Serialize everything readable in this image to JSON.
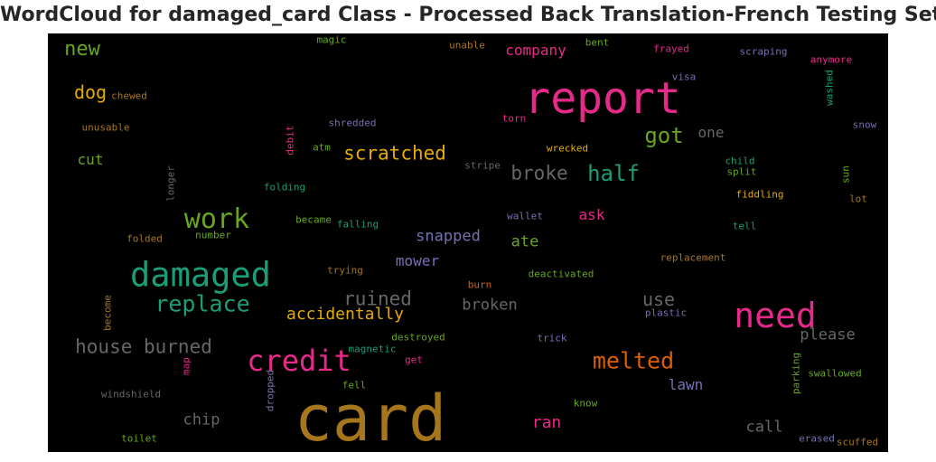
{
  "title": "WordCloud for damaged_card Class - Processed Back Translation-French Testing Set",
  "colors": {
    "background": "#000000",
    "palette": [
      "#b07a1f",
      "#e7298a",
      "#1b9e77",
      "#66a61e",
      "#e6ab02",
      "#d95f02",
      "#7570b3",
      "#666666",
      "#a6761d"
    ]
  },
  "chart_data": {
    "type": "wordcloud",
    "title": "WordCloud for damaged_card Class - Processed Back Translation-French Testing Set",
    "words": [
      {
        "text": "card",
        "weight": 100,
        "color": "#a6761d",
        "vertical": false
      },
      {
        "text": "report",
        "weight": 73,
        "color": "#e7298a",
        "vertical": false
      },
      {
        "text": "need",
        "weight": 57,
        "color": "#e7298a",
        "vertical": false
      },
      {
        "text": "damaged",
        "weight": 55,
        "color": "#1b9e77",
        "vertical": false
      },
      {
        "text": "credit",
        "weight": 48,
        "color": "#e7298a",
        "vertical": false
      },
      {
        "text": "work",
        "weight": 44,
        "color": "#66a61e",
        "vertical": false
      },
      {
        "text": "replace",
        "weight": 36,
        "color": "#1b9e77",
        "vertical": false
      },
      {
        "text": "melted",
        "weight": 36,
        "color": "#d95f02",
        "vertical": false
      },
      {
        "text": "half",
        "weight": 34,
        "color": "#1b9e77",
        "vertical": false
      },
      {
        "text": "got",
        "weight": 34,
        "color": "#66a61e",
        "vertical": false
      },
      {
        "text": "new",
        "weight": 32,
        "color": "#66a61e",
        "vertical": false
      },
      {
        "text": "house burned",
        "weight": 30,
        "color": "#666666",
        "vertical": false
      },
      {
        "text": "scratched",
        "weight": 30,
        "color": "#e6ab02",
        "vertical": false
      },
      {
        "text": "broke",
        "weight": 30,
        "color": "#666666",
        "vertical": false
      },
      {
        "text": "ruined",
        "weight": 30,
        "color": "#666666",
        "vertical": false
      },
      {
        "text": "dog",
        "weight": 29,
        "color": "#e6ab02",
        "vertical": false
      },
      {
        "text": "use",
        "weight": 28,
        "color": "#666666",
        "vertical": false
      },
      {
        "text": "accidentally",
        "weight": 25,
        "color": "#e6ab02",
        "vertical": false
      },
      {
        "text": "ran",
        "weight": 25,
        "color": "#e7298a",
        "vertical": false
      },
      {
        "text": "broken",
        "weight": 24,
        "color": "#666666",
        "vertical": false
      },
      {
        "text": "please",
        "weight": 24,
        "color": "#666666",
        "vertical": false
      },
      {
        "text": "call",
        "weight": 24,
        "color": "#666666",
        "vertical": false
      },
      {
        "text": "chip",
        "weight": 24,
        "color": "#666666",
        "vertical": false
      },
      {
        "text": "snapped",
        "weight": 23,
        "color": "#7570b3",
        "vertical": false
      },
      {
        "text": "ate",
        "weight": 23,
        "color": "#66a61e",
        "vertical": false
      },
      {
        "text": "ask",
        "weight": 22,
        "color": "#e7298a",
        "vertical": false
      },
      {
        "text": "company",
        "weight": 22,
        "color": "#e7298a",
        "vertical": false
      },
      {
        "text": "lawn",
        "weight": 22,
        "color": "#7570b3",
        "vertical": false
      },
      {
        "text": "mower",
        "weight": 22,
        "color": "#7570b3",
        "vertical": false
      },
      {
        "text": "cut",
        "weight": 22,
        "color": "#66a61e",
        "vertical": false
      },
      {
        "text": "one",
        "weight": 22,
        "color": "#666666",
        "vertical": false
      },
      {
        "text": "magic",
        "weight": 14,
        "color": "#66a61e",
        "vertical": false
      },
      {
        "text": "unable",
        "weight": 14,
        "color": "#a6761d",
        "vertical": false
      },
      {
        "text": "bent",
        "weight": 14,
        "color": "#66a61e",
        "vertical": false
      },
      {
        "text": "frayed",
        "weight": 14,
        "color": "#e7298a",
        "vertical": false
      },
      {
        "text": "scraping",
        "weight": 14,
        "color": "#7570b3",
        "vertical": false
      },
      {
        "text": "anymore",
        "weight": 14,
        "color": "#e7298a",
        "vertical": false
      },
      {
        "text": "chewed",
        "weight": 14,
        "color": "#a6761d",
        "vertical": false
      },
      {
        "text": "visa",
        "weight": 14,
        "color": "#7570b3",
        "vertical": false
      },
      {
        "text": "washed",
        "weight": 14,
        "color": "#1b9e77",
        "vertical": true
      },
      {
        "text": "unusable",
        "weight": 14,
        "color": "#a6761d",
        "vertical": false
      },
      {
        "text": "shredded",
        "weight": 14,
        "color": "#7570b3",
        "vertical": false
      },
      {
        "text": "torn",
        "weight": 14,
        "color": "#e7298a",
        "vertical": false
      },
      {
        "text": "snow",
        "weight": 14,
        "color": "#7570b3",
        "vertical": false
      },
      {
        "text": "debit",
        "weight": 14,
        "color": "#e7298a",
        "vertical": true
      },
      {
        "text": "atm",
        "weight": 14,
        "color": "#66a61e",
        "vertical": false
      },
      {
        "text": "wrecked",
        "weight": 14,
        "color": "#e6ab02",
        "vertical": false
      },
      {
        "text": "child",
        "weight": 14,
        "color": "#1b9e77",
        "vertical": false
      },
      {
        "text": "stripe",
        "weight": 14,
        "color": "#666666",
        "vertical": false
      },
      {
        "text": "split",
        "weight": 14,
        "color": "#66a61e",
        "vertical": false
      },
      {
        "text": "sun",
        "weight": 14,
        "color": "#66a61e",
        "vertical": true
      },
      {
        "text": "longer",
        "weight": 14,
        "color": "#666666",
        "vertical": true
      },
      {
        "text": "folding",
        "weight": 14,
        "color": "#1b9e77",
        "vertical": false
      },
      {
        "text": "fiddling",
        "weight": 14,
        "color": "#e6ab02",
        "vertical": false
      },
      {
        "text": "lot",
        "weight": 14,
        "color": "#a6761d",
        "vertical": false
      },
      {
        "text": "became",
        "weight": 14,
        "color": "#66a61e",
        "vertical": false
      },
      {
        "text": "falling",
        "weight": 14,
        "color": "#1b9e77",
        "vertical": false
      },
      {
        "text": "wallet",
        "weight": 14,
        "color": "#7570b3",
        "vertical": false
      },
      {
        "text": "tell",
        "weight": 14,
        "color": "#1b9e77",
        "vertical": false
      },
      {
        "text": "folded",
        "weight": 14,
        "color": "#a6761d",
        "vertical": false
      },
      {
        "text": "number",
        "weight": 14,
        "color": "#66a61e",
        "vertical": false
      },
      {
        "text": "replacement",
        "weight": 14,
        "color": "#a6761d",
        "vertical": false
      },
      {
        "text": "trying",
        "weight": 14,
        "color": "#a6761d",
        "vertical": false
      },
      {
        "text": "deactivated",
        "weight": 14,
        "color": "#66a61e",
        "vertical": false
      },
      {
        "text": "burn",
        "weight": 14,
        "color": "#d95f02",
        "vertical": false
      },
      {
        "text": "become",
        "weight": 14,
        "color": "#a6761d",
        "vertical": true
      },
      {
        "text": "plastic",
        "weight": 14,
        "color": "#7570b3",
        "vertical": false
      },
      {
        "text": "magnetic",
        "weight": 14,
        "color": "#1b9e77",
        "vertical": false
      },
      {
        "text": "destroyed",
        "weight": 14,
        "color": "#66a61e",
        "vertical": false
      },
      {
        "text": "trick",
        "weight": 14,
        "color": "#7570b3",
        "vertical": false
      },
      {
        "text": "parking",
        "weight": 14,
        "color": "#66a61e",
        "vertical": true
      },
      {
        "text": "map",
        "weight": 14,
        "color": "#e7298a",
        "vertical": true
      },
      {
        "text": "get",
        "weight": 14,
        "color": "#e7298a",
        "vertical": false
      },
      {
        "text": "swallowed",
        "weight": 14,
        "color": "#66a61e",
        "vertical": false
      },
      {
        "text": "dropped",
        "weight": 14,
        "color": "#7570b3",
        "vertical": true
      },
      {
        "text": "windshield",
        "weight": 14,
        "color": "#666666",
        "vertical": false
      },
      {
        "text": "fell",
        "weight": 14,
        "color": "#66a61e",
        "vertical": false
      },
      {
        "text": "know",
        "weight": 14,
        "color": "#66a61e",
        "vertical": false
      },
      {
        "text": "toilet",
        "weight": 14,
        "color": "#66a61e",
        "vertical": false
      },
      {
        "text": "erased",
        "weight": 14,
        "color": "#7570b3",
        "vertical": false
      },
      {
        "text": "scuffed",
        "weight": 14,
        "color": "#a6761d",
        "vertical": false
      }
    ]
  }
}
